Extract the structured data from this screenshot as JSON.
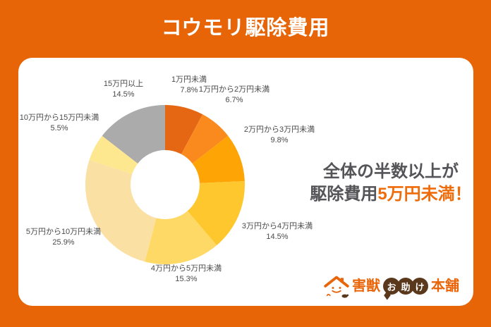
{
  "header": {
    "title": "コウモリ駆除費用"
  },
  "chart_data": {
    "type": "pie",
    "subtype": "donut",
    "title": "コウモリ駆除費用",
    "unit": "%",
    "direction": "clockwise",
    "start_angle_deg": 0,
    "categories": [
      "1万円未満",
      "1万円から2万円未満",
      "2万円から3万円未満",
      "3万円から4万円未満",
      "4万円から5万円未満",
      "5万円から10万円未満",
      "10万円から15万円未満",
      "15万円以上"
    ],
    "values": [
      7.8,
      6.7,
      9.8,
      14.5,
      15.3,
      25.9,
      5.5,
      14.5
    ],
    "segments": [
      {
        "label": "1万円未満",
        "value": 7.8,
        "display": "7.8%",
        "color": "#E56713"
      },
      {
        "label": "1万円から2万円未満",
        "value": 6.7,
        "display": "6.7%",
        "color": "#FA8A1E"
      },
      {
        "label": "2万円から3万円未満",
        "value": 9.8,
        "display": "9.8%",
        "color": "#FFA405"
      },
      {
        "label": "3万円から4万円未満",
        "value": 14.5,
        "display": "14.5%",
        "color": "#FFC72E"
      },
      {
        "label": "4万円から5万円未満",
        "value": 15.3,
        "display": "15.3%",
        "color": "#FFD966"
      },
      {
        "label": "5万円から10万円未満",
        "value": 25.9,
        "display": "25.9%",
        "color": "#FAE0A3"
      },
      {
        "label": "10万円から15万円未満",
        "value": 5.5,
        "display": "5.5%",
        "color": "#FDE88F"
      },
      {
        "label": "15万円以上",
        "value": 14.5,
        "display": "14.5%",
        "color": "#ABABAB"
      }
    ]
  },
  "callout": {
    "line1": "全体の半数以上が",
    "line2_prefix": "駆除費用",
    "line2_highlight": "5万円未満！"
  },
  "logo": {
    "brand_part1": "害獣",
    "brand_bubble": "お助け",
    "bubble_chars": [
      "お",
      "助",
      "け"
    ],
    "brand_part2": "本舗"
  },
  "colors": {
    "background": "#E76507",
    "card": "#FFFFFF",
    "title_text": "#FFFFFF",
    "label_text": "#4A4A4A",
    "callout_text": "#545459",
    "callout_highlight": "#EF6C0A",
    "logo_orange": "#E8650A",
    "logo_brown": "#5A381C",
    "segment_gray": "#ABABAB"
  }
}
